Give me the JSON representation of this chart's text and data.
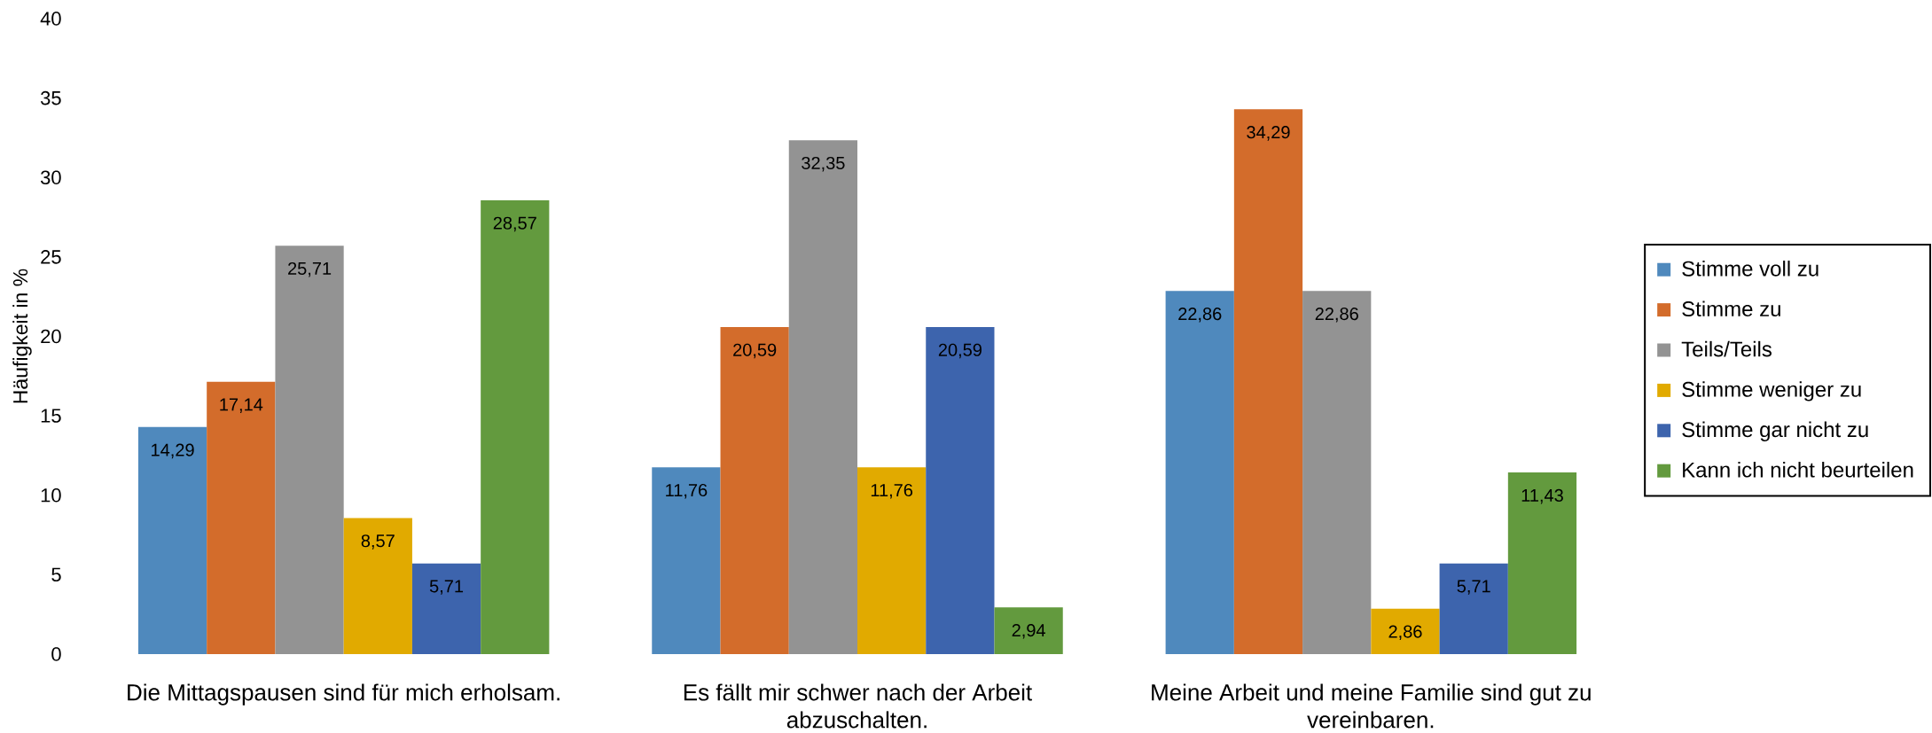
{
  "chart_data": {
    "type": "bar",
    "ylabel": "Häufigkeit in %",
    "categories": [
      "Die Mittagspausen sind für mich erholsam.",
      "Es fällt mir schwer nach der Arbeit abzuschalten.",
      "Meine Arbeit und meine Familie sind gut zu vereinbaren."
    ],
    "series": [
      {
        "name": "Stimme voll zu",
        "color": "#4f89bd",
        "values": [
          14.29,
          11.76,
          22.86
        ],
        "value_labels": [
          "14,29",
          "11,76",
          "22,86"
        ]
      },
      {
        "name": "Stimme zu",
        "color": "#d36c2b",
        "values": [
          17.14,
          20.59,
          34.29
        ],
        "value_labels": [
          "17,14",
          "20,59",
          "34,29"
        ]
      },
      {
        "name": "Teils/Teils",
        "color": "#939393",
        "values": [
          25.71,
          32.35,
          22.86
        ],
        "value_labels": [
          "25,71",
          "32,35",
          "22,86"
        ]
      },
      {
        "name": "Stimme weniger zu",
        "color": "#e1aa00",
        "values": [
          8.57,
          11.76,
          2.86
        ],
        "value_labels": [
          "8,57",
          "11,76",
          "2,86"
        ]
      },
      {
        "name": "Stimme gar nicht zu",
        "color": "#3d64ad",
        "values": [
          5.71,
          20.59,
          5.71
        ],
        "value_labels": [
          "5,71",
          "20,59",
          "5,71"
        ]
      },
      {
        "name": "Kann ich nicht beurteilen",
        "color": "#639a3e",
        "values": [
          28.57,
          2.94,
          11.43
        ],
        "value_labels": [
          "28,57",
          "2,94",
          "11,43"
        ]
      }
    ],
    "ylim": [
      0,
      40
    ],
    "yticks": [
      0,
      5,
      10,
      15,
      20,
      25,
      30,
      35,
      40
    ],
    "legend": "right"
  }
}
